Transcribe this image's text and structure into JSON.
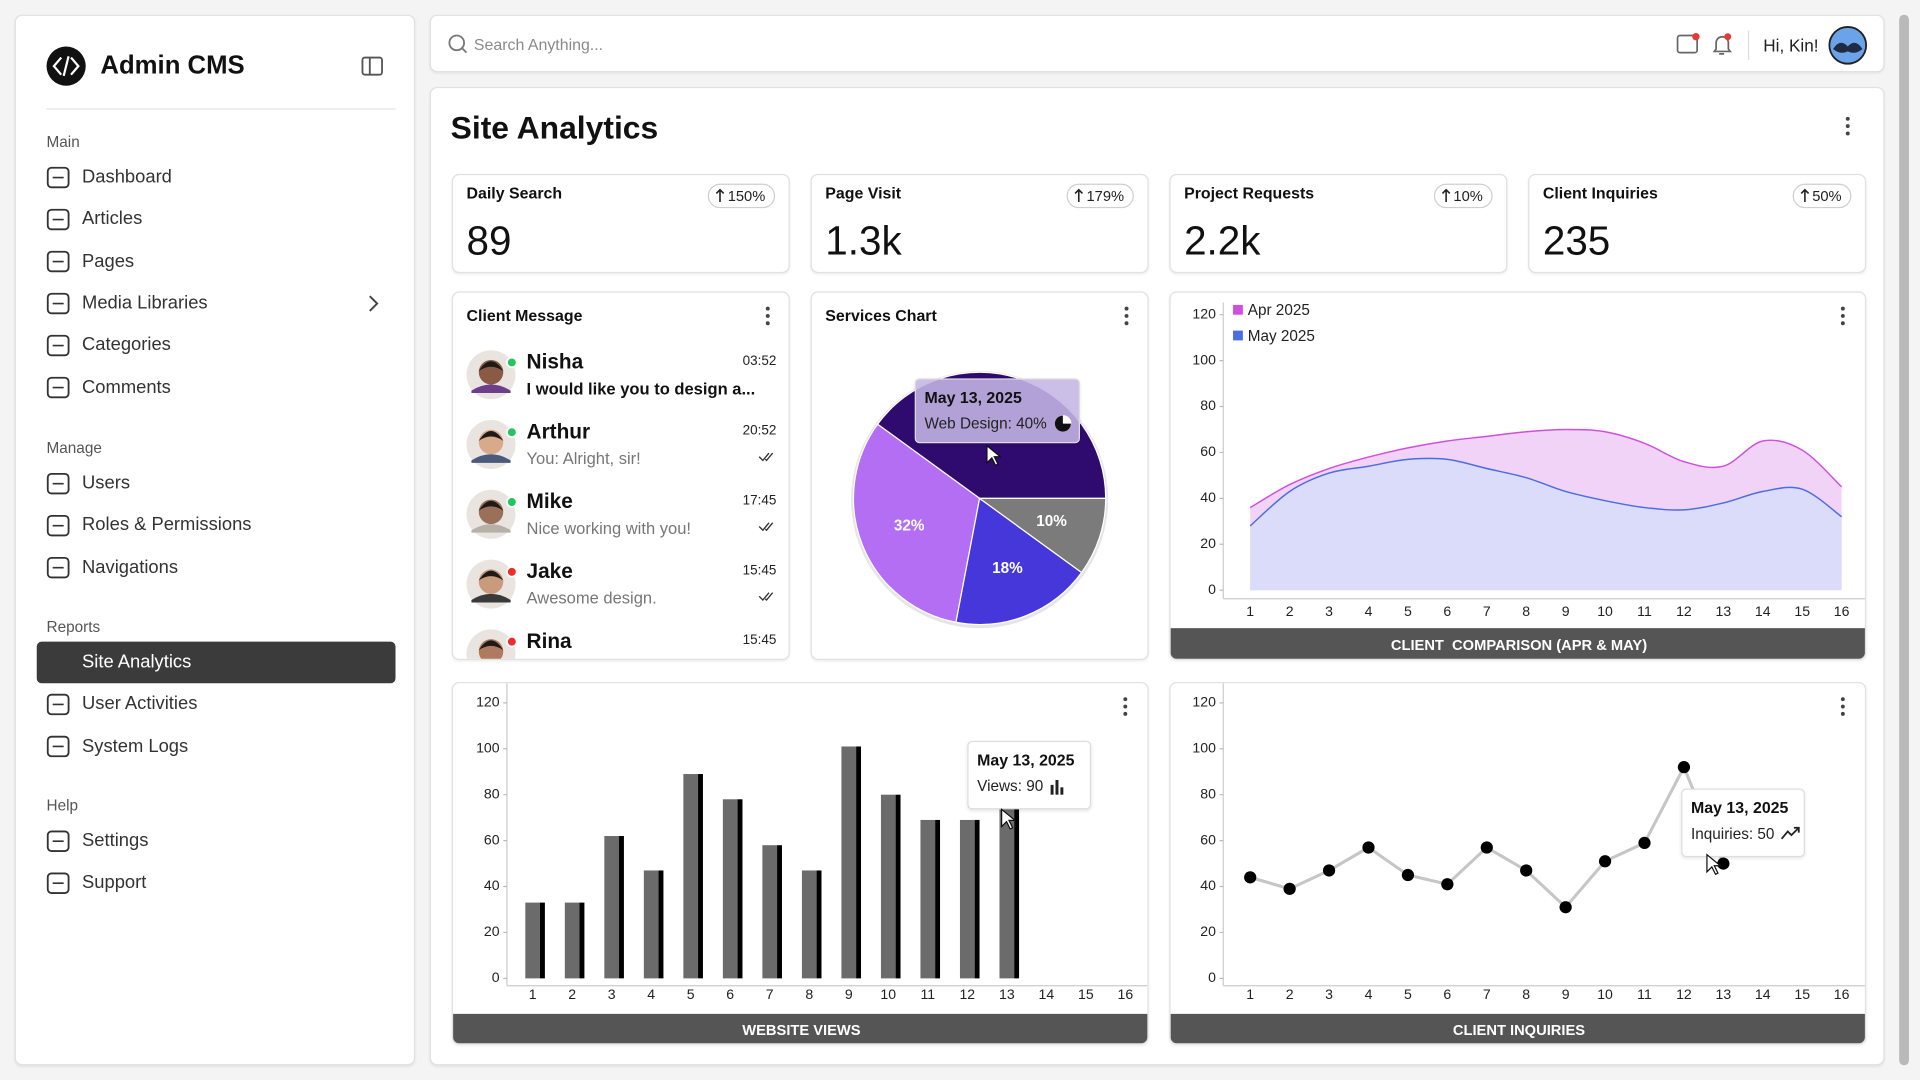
{
  "sidebar": {
    "brand": "Admin CMS",
    "sections": [
      {
        "title": "Main",
        "items": [
          {
            "label": "Dashboard"
          },
          {
            "label": "Articles"
          },
          {
            "label": "Pages"
          },
          {
            "label": "Media Libraries",
            "submenu": true
          },
          {
            "label": "Categories"
          },
          {
            "label": "Comments"
          }
        ]
      },
      {
        "title": "Manage",
        "items": [
          {
            "label": "Users"
          },
          {
            "label": "Roles & Permissions"
          },
          {
            "label": "Navigations"
          }
        ]
      },
      {
        "title": "Reports",
        "items": [
          {
            "label": "Site Analytics",
            "active": true
          },
          {
            "label": "User Activities"
          },
          {
            "label": "System Logs"
          }
        ]
      },
      {
        "title": "Help",
        "items": [
          {
            "label": "Settings"
          },
          {
            "label": "Support"
          }
        ]
      }
    ]
  },
  "header": {
    "search_placeholder": "Search Anything...",
    "greeting": "Hi, Kin!"
  },
  "page": {
    "title": "Site Analytics"
  },
  "stats": [
    {
      "label": "Daily Search",
      "value": "89",
      "change": "150%"
    },
    {
      "label": "Page Visit",
      "value": "1.3k",
      "change": "179%"
    },
    {
      "label": "Project Requests",
      "value": "2.2k",
      "change": "10%"
    },
    {
      "label": "Client Inquiries",
      "value": "235",
      "change": "50%"
    }
  ],
  "messages": {
    "title": "Client Message",
    "items": [
      {
        "name": "Nisha",
        "text": "I would like you to design a...",
        "time": "03:52",
        "status": "online",
        "unread": true
      },
      {
        "name": "Arthur",
        "text": "You: Alright, sir!",
        "time": "20:52",
        "status": "online",
        "seen": true
      },
      {
        "name": "Mike",
        "text": "Nice working with you!",
        "time": "17:45",
        "status": "online",
        "seen": true
      },
      {
        "name": "Jake",
        "text": "Awesome design.",
        "time": "15:45",
        "status": "offline",
        "seen": true
      },
      {
        "name": "Rina",
        "time": "15:45",
        "status": "offline"
      }
    ]
  },
  "chart_data": [
    {
      "type": "pie",
      "title": "Services Chart",
      "values": [
        40,
        32,
        18,
        10
      ],
      "value_labels": [
        null,
        "32%",
        "18%",
        "10%"
      ],
      "colors": [
        "#2f0b70",
        "#b36ef3",
        "#4537d9",
        "#7b7b7b"
      ],
      "tooltip": {
        "date": "May 13, 2025",
        "text": "Web Design: 40%"
      }
    },
    {
      "type": "area",
      "x_label": "CLIENT  COMPARISON (APR & MAY)",
      "categories": [
        1,
        2,
        3,
        4,
        5,
        6,
        7,
        8,
        9,
        10,
        11,
        12,
        13,
        14,
        15,
        16
      ],
      "ylim": [
        0,
        120
      ],
      "yticks": [
        0,
        20,
        40,
        60,
        80,
        100,
        120
      ],
      "legend": "upper left",
      "series": [
        {
          "name": "Apr 2025",
          "color": "#d04fdf",
          "values": [
            36,
            46,
            53,
            58,
            62,
            65,
            67,
            69,
            70,
            69,
            64,
            56,
            54,
            65,
            61,
            45
          ]
        },
        {
          "name": "May 2025",
          "color": "#4a6de0",
          "values": [
            28,
            43,
            51,
            54,
            57,
            57,
            53,
            49,
            43,
            39,
            36,
            35,
            38,
            43,
            44,
            32
          ]
        }
      ]
    },
    {
      "type": "bar",
      "x_label": "WEBSITE VIEWS",
      "categories": [
        1,
        2,
        3,
        4,
        5,
        6,
        7,
        8,
        9,
        10,
        11,
        12,
        13,
        14,
        15,
        16
      ],
      "values": [
        33,
        33,
        62,
        47,
        89,
        78,
        58,
        47,
        101,
        80,
        69,
        69,
        90,
        null,
        null,
        null
      ],
      "color": "#6b6b6b",
      "ylim": [
        0,
        120
      ],
      "yticks": [
        0,
        20,
        40,
        60,
        80,
        100,
        120
      ],
      "tooltip": {
        "date": "May 13, 2025",
        "text": "Views: 90"
      }
    },
    {
      "type": "line",
      "x_label": "CLIENT INQUIRIES",
      "categories": [
        1,
        2,
        3,
        4,
        5,
        6,
        7,
        8,
        9,
        10,
        11,
        12,
        13,
        14,
        15,
        16
      ],
      "values": [
        44,
        39,
        47,
        57,
        45,
        41,
        57,
        47,
        31,
        51,
        59,
        92,
        50,
        null,
        null,
        null
      ],
      "color": "#c6c6c6",
      "ylim": [
        0,
        120
      ],
      "yticks": [
        0,
        20,
        40,
        60,
        80,
        100,
        120
      ],
      "tooltip": {
        "date": "May 13, 2025",
        "text": "Inquiries: 50"
      }
    }
  ]
}
